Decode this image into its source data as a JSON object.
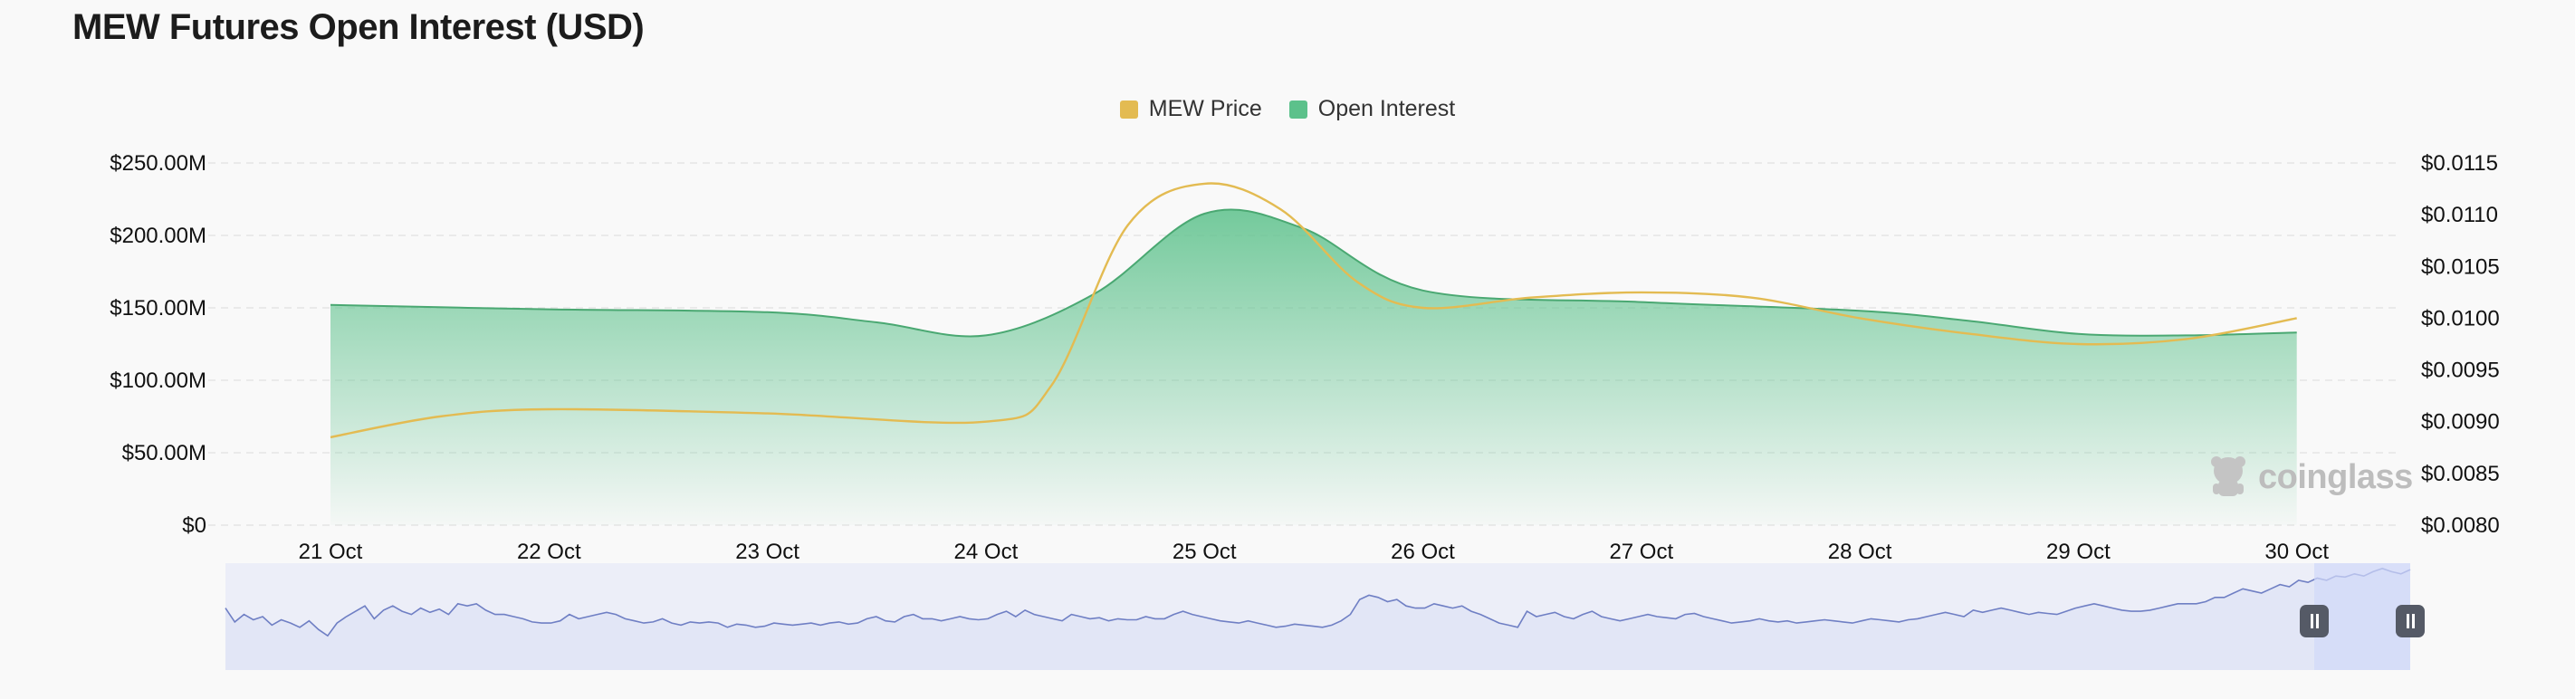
{
  "title": "MEW Futures Open Interest (USD)",
  "watermark": "coinglass",
  "colors": {
    "price": "#e3bb52",
    "oi": "#5cc18b",
    "oi_line": "#4aa872",
    "navigator": "#6f7fc4",
    "navigator_fill": "#e4e7f6",
    "navigator_select": "#d6dbf8"
  },
  "chart_data": {
    "type": "area",
    "title": "MEW Futures Open Interest (USD)",
    "categories": [
      "21 Oct",
      "22 Oct",
      "23 Oct",
      "24 Oct",
      "25 Oct",
      "26 Oct",
      "27 Oct",
      "28 Oct",
      "29 Oct",
      "30 Oct"
    ],
    "series": [
      {
        "name": "Open Interest",
        "axis": "left",
        "type": "area",
        "x": [
          0,
          1,
          2,
          2.5,
          3,
          3.5,
          4,
          4.45,
          5,
          6,
          7,
          7.5,
          8,
          8.5,
          9
        ],
        "values": [
          152,
          149,
          147,
          140,
          131,
          160,
          215,
          205,
          162,
          154,
          148,
          141,
          132,
          131,
          133
        ]
      },
      {
        "name": "MEW Price",
        "axis": "right",
        "type": "line",
        "x": [
          0,
          0.5,
          1,
          2,
          3,
          3.3,
          3.65,
          4,
          4.35,
          4.7,
          5,
          5.5,
          6,
          6.5,
          7,
          7.5,
          8,
          8.5,
          9
        ],
        "values": [
          0.00885,
          0.00905,
          0.00912,
          0.00908,
          0.009,
          0.00935,
          0.0109,
          0.0113,
          0.01105,
          0.01035,
          0.0101,
          0.0102,
          0.01025,
          0.0102,
          0.01,
          0.00985,
          0.00975,
          0.0098,
          0.01
        ]
      }
    ],
    "y_left": {
      "min": 0,
      "max": 250,
      "ticks": [
        0,
        50,
        100,
        150,
        200,
        250
      ],
      "tick_labels": [
        "$0",
        "$50.00M",
        "$100.00M",
        "$150.00M",
        "$200.00M",
        "$250.00M"
      ]
    },
    "y_right": {
      "min": 0.008,
      "max": 0.0115,
      "ticks": [
        0.008,
        0.0085,
        0.009,
        0.0095,
        0.01,
        0.0105,
        0.011,
        0.0115
      ],
      "tick_labels": [
        "$0.0080",
        "$0.0085",
        "$0.0090",
        "$0.0095",
        "$0.0100",
        "$0.0105",
        "$0.0110",
        "$0.0115"
      ]
    },
    "grid": true,
    "legend": [
      "MEW Price",
      "Open Interest"
    ],
    "legend_position": "top-center",
    "navigator": {
      "values": [
        58,
        45,
        52,
        47,
        50,
        42,
        47,
        44,
        40,
        46,
        38,
        32,
        44,
        50,
        55,
        60,
        48,
        56,
        60,
        55,
        52,
        58,
        54,
        57,
        52,
        62,
        60,
        62,
        56,
        52,
        52,
        50,
        48,
        45,
        44,
        44,
        46,
        52,
        48,
        50,
        52,
        54,
        52,
        48,
        46,
        44,
        45,
        48,
        44,
        42,
        45,
        44,
        45,
        44,
        40,
        43,
        42,
        40,
        41,
        44,
        43,
        42,
        43,
        44,
        42,
        44,
        45,
        43,
        44,
        48,
        50,
        46,
        45,
        50,
        52,
        48,
        48,
        46,
        48,
        50,
        48,
        47,
        48,
        52,
        55,
        50,
        56,
        52,
        50,
        48,
        46,
        52,
        50,
        48,
        49,
        46,
        48,
        47,
        47,
        50,
        48,
        48,
        52,
        55,
        52,
        50,
        48,
        46,
        45,
        44,
        46,
        44,
        42,
        40,
        41,
        43,
        42,
        41,
        40,
        42,
        46,
        52,
        66,
        70,
        68,
        64,
        66,
        60,
        58,
        58,
        62,
        60,
        58,
        60,
        55,
        52,
        48,
        44,
        42,
        40,
        55,
        50,
        52,
        54,
        50,
        48,
        52,
        55,
        50,
        48,
        46,
        48,
        50,
        52,
        50,
        49,
        48,
        52,
        53,
        50,
        48,
        46,
        44,
        45,
        46,
        48,
        46,
        45,
        46,
        44,
        45,
        46,
        47,
        46,
        45,
        44,
        46,
        48,
        47,
        46,
        45,
        47,
        48,
        50,
        52,
        54,
        52,
        50,
        56,
        54,
        56,
        58,
        56,
        54,
        52,
        54,
        53,
        52,
        55,
        58,
        60,
        62,
        60,
        58,
        56,
        55,
        55,
        56,
        58,
        60,
        62,
        62,
        62,
        64,
        68,
        68,
        72,
        76,
        74,
        72,
        76,
        80,
        78,
        84,
        82,
        86,
        84,
        88,
        87,
        90,
        88,
        92,
        95,
        92,
        90,
        94
      ]
    }
  }
}
